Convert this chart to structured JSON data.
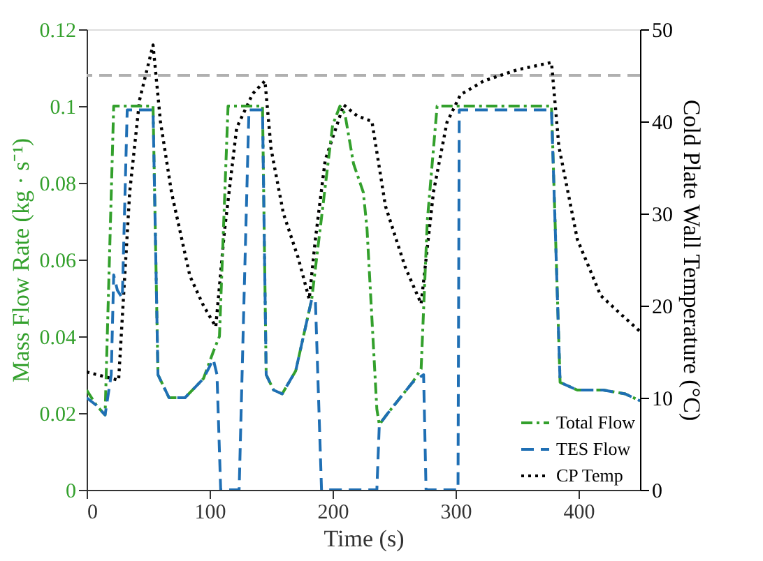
{
  "chart_data": {
    "type": "line",
    "xlabel": "Time (s)",
    "ylabel": "Mass Flow Rate (kg · s⁻¹)",
    "y2label": "Cold Plate Wall Temperature (°C)",
    "xlim": [
      0,
      450
    ],
    "xticks": [
      0,
      100,
      200,
      300,
      400
    ],
    "ylim": [
      0,
      0.12
    ],
    "yticks": [
      0,
      0.02,
      0.04,
      0.06,
      0.08,
      0.1,
      0.12
    ],
    "y2lim": [
      0,
      50
    ],
    "y2ticks": [
      0,
      10,
      20,
      30,
      40,
      50
    ],
    "grid": false,
    "legend": "bottom right",
    "marker": "none",
    "ref_lines": [
      {
        "axis": "y2",
        "value": 45,
        "color": "#b0b0b0",
        "line_style": "dashed"
      }
    ],
    "series": [
      {
        "name": "Total Flow",
        "color": "#33a02c",
        "line_style": "dashdot",
        "x": [
          0,
          8,
          15,
          22,
          54,
          58,
          67,
          80,
          95,
          103,
          108,
          115,
          143,
          146,
          152,
          159,
          170,
          183,
          200,
          206,
          210,
          217,
          225,
          228,
          236,
          238,
          245,
          255,
          265,
          272,
          277,
          285,
          378,
          385,
          399,
          420,
          438,
          450
        ],
        "values": [
          0.026,
          0.022,
          0.0195,
          0.1,
          0.1,
          0.03,
          0.024,
          0.024,
          0.029,
          0.036,
          0.04,
          0.1,
          0.1,
          0.03,
          0.026,
          0.025,
          0.031,
          0.0496,
          0.095,
          0.1,
          0.098,
          0.085,
          0.0775,
          0.068,
          0.021,
          0.017,
          0.02,
          0.024,
          0.028,
          0.0315,
          0.07,
          0.1,
          0.1,
          0.028,
          0.026,
          0.026,
          0.025,
          0.0232
        ]
      },
      {
        "name": "TES Flow",
        "color": "#1f6fb4",
        "line_style": "dashed",
        "x": [
          0,
          8,
          15,
          20,
          22,
          25,
          29,
          33,
          54,
          58,
          67,
          80,
          95,
          103,
          106,
          109,
          124,
          128,
          132,
          143,
          146,
          152,
          159,
          170,
          183,
          186,
          191,
          236,
          238,
          245,
          255,
          265,
          274,
          276,
          302,
          303,
          378,
          385,
          399,
          420,
          438,
          450
        ],
        "values": [
          0.024,
          0.022,
          0.0195,
          0.03,
          0.056,
          0.052,
          0.05,
          0.099,
          0.099,
          0.03,
          0.024,
          0.024,
          0.029,
          0.034,
          0.03,
          0,
          0,
          0.05,
          0.099,
          0.099,
          0.03,
          0.026,
          0.025,
          0.031,
          0.0496,
          0.0496,
          0,
          0,
          0.017,
          0.02,
          0.024,
          0.028,
          0.03,
          0,
          0,
          0.099,
          0.099,
          0.028,
          0.026,
          0.026,
          0.025,
          0.0232
        ]
      },
      {
        "name": "CP Temp",
        "color": "#000000",
        "line_style": "dotted",
        "axis": "y2",
        "x": [
          0,
          26,
          35,
          43,
          54,
          60,
          69,
          84,
          95,
          105,
          112,
          122,
          135,
          145,
          150,
          160,
          172,
          181,
          186,
          194,
          209,
          220,
          232,
          243,
          259,
          272,
          282,
          293,
          304,
          323,
          350,
          378,
          384,
          399,
          418,
          435,
          450
        ],
        "values": [
          12.8,
          11.9,
          32.3,
          42.3,
          48.3,
          40,
          32.3,
          23.2,
          20,
          17.7,
          28,
          39.3,
          43,
          44.4,
          37,
          30,
          25.2,
          20.7,
          27.2,
          35.8,
          41.8,
          40.6,
          40,
          30.8,
          24.2,
          20.2,
          32.3,
          39.9,
          42.9,
          44.4,
          45.6,
          46.4,
          37.3,
          27.2,
          21.1,
          19,
          17.2
        ]
      }
    ]
  }
}
